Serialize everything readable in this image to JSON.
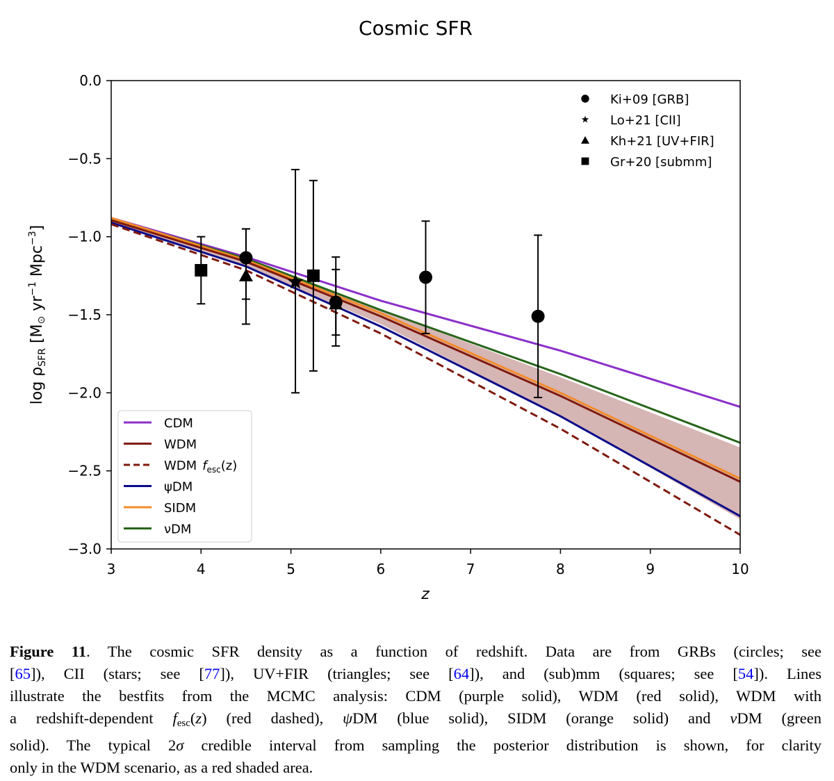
{
  "chart_data": {
    "type": "line",
    "title": "Cosmic SFR",
    "xlabel": "z",
    "ylabel": {
      "pre": "log ρ",
      "sub": "SFR",
      "open": " [M",
      "sun": "⊙",
      "yr": " yr",
      "exp1": "−1",
      "mpc": " Mpc",
      "exp3": "−3",
      "close": "]"
    },
    "xlim": [
      3,
      10
    ],
    "ylim": [
      -3.0,
      0.0
    ],
    "xticks": [
      "3",
      "4",
      "5",
      "6",
      "7",
      "8",
      "9",
      "10"
    ],
    "yticks": [
      "0.0",
      "−0.5",
      "−1.0",
      "−1.5",
      "−2.0",
      "−2.5",
      "−3.0"
    ],
    "grid": false,
    "series": [
      {
        "name": "CDM",
        "style": "solid",
        "color": "#8b2fc9",
        "x": [
          3,
          4.5,
          6,
          8,
          10
        ],
        "y": [
          -0.88,
          -1.13,
          -1.41,
          -1.73,
          -2.09
        ]
      },
      {
        "name": "WDM",
        "style": "solid",
        "color": "#7f1a0e",
        "x": [
          3,
          4.5,
          6,
          8,
          10
        ],
        "y": [
          -0.895,
          -1.16,
          -1.51,
          -2.02,
          -2.57
        ]
      },
      {
        "name": "WDM",
        "name_math": "f",
        "name_sub": "esc",
        "name_arg": "(z)",
        "style": "dashed",
        "color": "#7f1a0e",
        "x": [
          3,
          4.5,
          6,
          8,
          10
        ],
        "y": [
          -0.92,
          -1.215,
          -1.62,
          -2.23,
          -2.91
        ]
      },
      {
        "name": "ψDM",
        "style": "solid",
        "color": "#0a0a8a",
        "x": [
          3,
          4.5,
          6,
          8,
          10
        ],
        "y": [
          -0.91,
          -1.19,
          -1.575,
          -2.15,
          -2.79
        ]
      },
      {
        "name": "SIDM",
        "style": "solid",
        "color": "#f28c28",
        "x": [
          3,
          4.5,
          6,
          8,
          10
        ],
        "y": [
          -0.88,
          -1.15,
          -1.49,
          -2.0,
          -2.55
        ]
      },
      {
        "name": "νDM",
        "style": "solid",
        "color": "#276419",
        "x": [
          3,
          4.5,
          6,
          8,
          10
        ],
        "y": [
          -0.885,
          -1.14,
          -1.47,
          -1.88,
          -2.32
        ]
      }
    ],
    "band": {
      "series": "WDM",
      "color": "#d6b5b5",
      "x": [
        3,
        4.5,
        6,
        8,
        10
      ],
      "upper": [
        -0.88,
        -1.14,
        -1.47,
        -1.9,
        -2.35
      ],
      "lower": [
        -0.91,
        -1.19,
        -1.56,
        -2.15,
        -2.81
      ]
    },
    "points": [
      {
        "name": "Ki+09 [GRB]",
        "marker": "circle",
        "data": [
          {
            "x": 4.5,
            "y": -1.135,
            "lo": -1.4,
            "hi": -0.95
          },
          {
            "x": 5.5,
            "y": -1.42,
            "lo": -1.63,
            "hi": -1.13
          },
          {
            "x": 6.5,
            "y": -1.26,
            "lo": -1.62,
            "hi": -0.9
          },
          {
            "x": 7.75,
            "y": -1.51,
            "lo": -2.03,
            "hi": -0.99
          }
        ]
      },
      {
        "name": "Lo+21 [CII]",
        "marker": "star",
        "data": [
          {
            "x": 5.05,
            "y": -1.29,
            "lo": -2.0,
            "hi": -0.57
          }
        ]
      },
      {
        "name": "Kh+21 [UV+FIR]",
        "marker": "triangle",
        "data": [
          {
            "x": 4.5,
            "y": -1.25,
            "lo": -1.56,
            "hi": -0.95
          },
          {
            "x": 5.5,
            "y": -1.43,
            "lo": -1.7,
            "hi": -1.21
          }
        ]
      },
      {
        "name": "Gr+20 [submm]",
        "marker": "square",
        "data": [
          {
            "x": 4.0,
            "y": -1.215,
            "lo": -1.43,
            "hi": -1.0
          },
          {
            "x": 5.25,
            "y": -1.25,
            "lo": -1.86,
            "hi": -0.64
          }
        ]
      }
    ]
  },
  "caption": {
    "lines": [
      [
        {
          "t": "Figure 11",
          "c": "b"
        },
        {
          "t": ".  The cosmic SFR density as a function of redshift.  Data are from GRBs (circles; see"
        }
      ],
      [
        {
          "t": "["
        },
        {
          "t": "65",
          "c": "cite"
        },
        {
          "t": "]), CII (stars; see ["
        },
        {
          "t": "77",
          "c": "cite"
        },
        {
          "t": "]), UV+FIR (triangles; see ["
        },
        {
          "t": "64",
          "c": "cite"
        },
        {
          "t": "]), and (sub)mm (squares; see ["
        },
        {
          "t": "54",
          "c": "cite"
        },
        {
          "t": "]).  Lines"
        }
      ],
      [
        {
          "t": "illustrate the bestfits from the MCMC analysis: CDM (purple solid), WDM (red solid), WDM with"
        }
      ],
      [
        {
          "t": "a redshift-dependent "
        },
        {
          "t": "f",
          "c": "it"
        },
        {
          "t": "esc",
          "c": "sub"
        },
        {
          "t": "("
        },
        {
          "t": "z",
          "c": "it"
        },
        {
          "t": ") (red dashed), "
        },
        {
          "t": "ψ",
          "c": "it"
        },
        {
          "t": "DM (blue solid), SIDM (orange solid) and "
        },
        {
          "t": "ν",
          "c": "it"
        },
        {
          "t": "DM (green"
        }
      ],
      [
        {
          "t": "solid). The typical 2"
        },
        {
          "t": "σ",
          "c": "it"
        },
        {
          "t": " credible interval from sampling the posterior distribution is shown, for clarity"
        }
      ],
      [
        {
          "t": "only in the WDM scenario, as a red shaded area."
        }
      ]
    ]
  }
}
